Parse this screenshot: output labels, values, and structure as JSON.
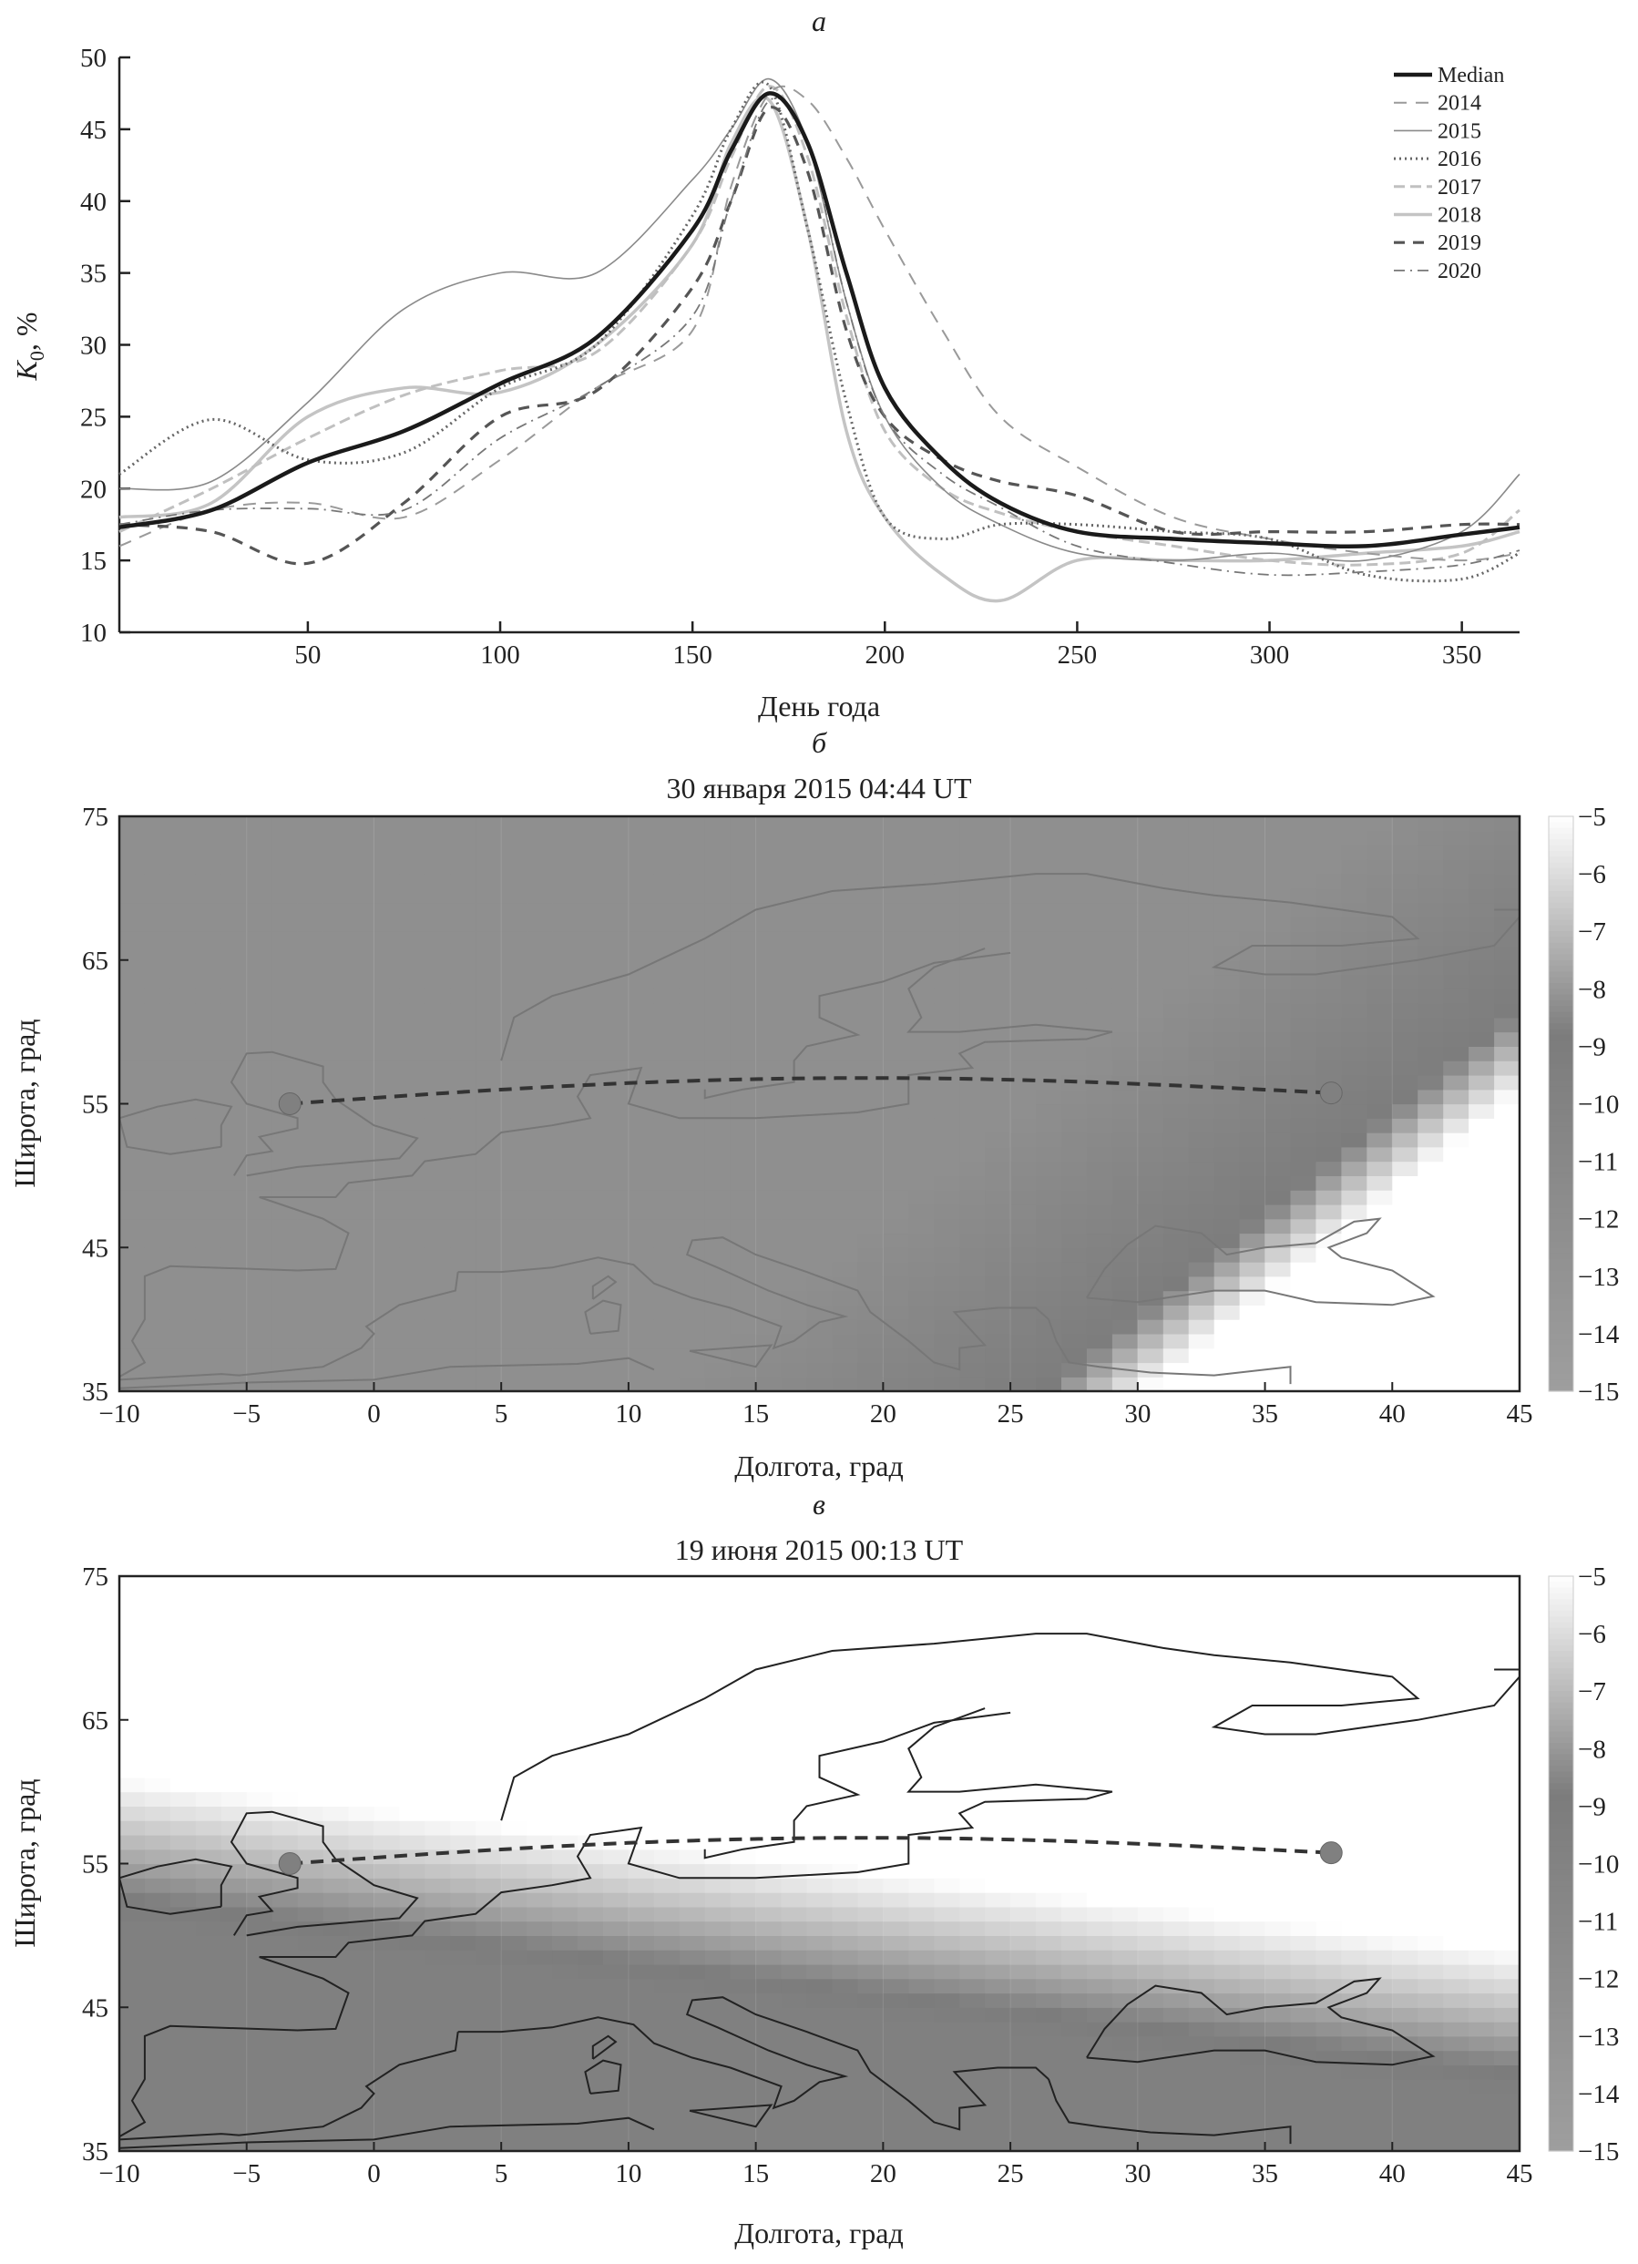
{
  "panel_labels": {
    "a": "а",
    "b": "б",
    "c": "в"
  },
  "chart_data": [
    {
      "type": "line",
      "xlabel": "День года",
      "ylabel_main": "K",
      "ylabel_sub": "0",
      "ylabel_unit": ", %",
      "xlim": [
        1,
        365
      ],
      "ylim": [
        10,
        50
      ],
      "xticks": [
        50,
        100,
        150,
        200,
        250,
        300,
        350
      ],
      "yticks": [
        10,
        15,
        20,
        25,
        30,
        35,
        40,
        45,
        50
      ],
      "grid": false,
      "legend": "top-right",
      "x": [
        1,
        25,
        50,
        75,
        100,
        125,
        150,
        160,
        170,
        180,
        190,
        200,
        215,
        230,
        250,
        275,
        300,
        325,
        350,
        365
      ],
      "series": [
        {
          "name": "Median",
          "style": "solid-thick",
          "color": "#1a1a1a",
          "values": [
            17.3,
            18.5,
            21.8,
            24,
            27.3,
            30.5,
            38,
            43.5,
            47.5,
            44,
            35,
            27,
            22,
            19,
            17,
            16.5,
            16.2,
            16,
            16.8,
            17.3
          ]
        },
        {
          "name": "2014",
          "style": "dashed",
          "color": "#9a9a9a",
          "values": [
            16,
            18.5,
            19,
            18,
            22,
            27,
            31,
            41,
            47.5,
            47,
            43,
            38,
            31,
            25,
            21.5,
            18,
            16.5,
            15.5,
            15,
            15.5
          ]
        },
        {
          "name": "2015",
          "style": "solid-thin",
          "color": "#8a8a8a",
          "values": [
            20,
            20.5,
            26,
            32.5,
            35,
            35,
            41.5,
            45,
            48.5,
            44,
            33,
            25,
            20,
            17.5,
            15.5,
            15,
            15.5,
            15,
            17,
            21
          ]
        },
        {
          "name": "2016",
          "style": "dotted",
          "color": "#666666",
          "values": [
            21,
            24.8,
            22,
            22.5,
            27,
            30,
            39,
            45,
            48,
            38,
            26,
            18,
            16.5,
            17.5,
            17.5,
            17,
            16.5,
            14,
            13.7,
            15.5
          ]
        },
        {
          "name": "2017",
          "style": "dashed-light",
          "color": "#c0c0c0",
          "values": [
            17,
            20,
            23.5,
            26.5,
            28.2,
            29.5,
            37,
            43,
            48,
            43,
            32,
            24,
            20,
            18.3,
            17,
            16,
            15,
            14.7,
            15.5,
            18.5
          ]
        },
        {
          "name": "2018",
          "style": "solid-light",
          "color": "#c4c4c4",
          "values": [
            18,
            19,
            25,
            27,
            26.7,
            30,
            37,
            44,
            47,
            38,
            24,
            18,
            14,
            12.2,
            15,
            15,
            15,
            15.5,
            16,
            17
          ]
        },
        {
          "name": "2019",
          "style": "dashed-dark",
          "color": "#555555",
          "values": [
            17.5,
            17,
            14.8,
            19,
            25,
            26.8,
            34,
            40,
            46.5,
            42,
            31,
            25,
            22,
            20.5,
            19.5,
            17,
            17,
            17,
            17.5,
            17.5
          ]
        },
        {
          "name": "2020",
          "style": "dashdot",
          "color": "#777777",
          "values": [
            17.5,
            18.5,
            18.6,
            18.5,
            23.5,
            27,
            32,
            40,
            47,
            44,
            33,
            25,
            21,
            18.7,
            16,
            14.8,
            14,
            14.2,
            14.7,
            15.7
          ]
        }
      ]
    },
    {
      "type": "heatmap",
      "title": "30 января 2015 04:44 UT",
      "xlabel": "Долгота, град",
      "ylabel": "Широта, град",
      "xlim": [
        -10,
        45
      ],
      "ylim": [
        35,
        75
      ],
      "xticks": [
        -10,
        -5,
        0,
        5,
        10,
        15,
        20,
        25,
        30,
        35,
        40,
        45
      ],
      "yticks": [
        35,
        45,
        55,
        65,
        75
      ],
      "colorbar": {
        "range": [
          -15,
          -5
        ],
        "ticks": [
          -5,
          -6,
          -7,
          -8,
          -9,
          -10,
          -11,
          -12,
          -13,
          -14,
          -15
        ]
      },
      "coastline_color": "#777777",
      "path": {
        "start": [
          -3.3,
          55.0
        ],
        "end": [
          37.6,
          55.75
        ],
        "style": "dashed"
      }
    },
    {
      "type": "heatmap",
      "title": "19 июня 2015 00:13 UT",
      "xlabel": "Долгота, град",
      "ylabel": "Широта, град",
      "xlim": [
        -10,
        45
      ],
      "ylim": [
        35,
        75
      ],
      "xticks": [
        -10,
        -5,
        0,
        5,
        10,
        15,
        20,
        25,
        30,
        35,
        40,
        45
      ],
      "yticks": [
        35,
        45,
        55,
        65,
        75
      ],
      "colorbar": {
        "range": [
          -15,
          -5
        ],
        "ticks": [
          -5,
          -6,
          -7,
          -8,
          -9,
          -10,
          -11,
          -12,
          -13,
          -14,
          -15
        ]
      },
      "coastline_color": "#222222",
      "path": {
        "start": [
          -3.3,
          55.0
        ],
        "end": [
          37.6,
          55.75
        ],
        "style": "dashed"
      }
    }
  ]
}
